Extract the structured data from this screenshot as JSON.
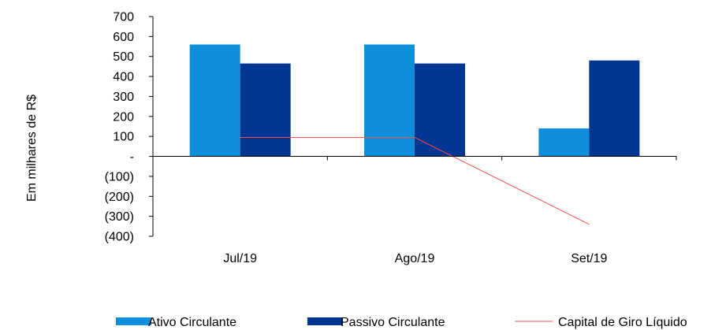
{
  "chart_data": {
    "type": "bar",
    "ylabel": "Em milhares de R$",
    "categories": [
      "Jul/19",
      "Ago/19",
      "Set/19"
    ],
    "ylim": [
      -400,
      700
    ],
    "yticks": [
      700,
      600,
      500,
      400,
      300,
      200,
      100,
      0,
      -100,
      -200,
      -300,
      -400
    ],
    "ytick_labels": [
      "700",
      "600",
      "500",
      "400",
      "300",
      "200",
      "100",
      "-",
      "(100)",
      "(200)",
      "(300)",
      "(400)"
    ],
    "grid": false,
    "legend_position": "bottom",
    "series": [
      {
        "name": "Ativo Circulante",
        "kind": "bar",
        "color": "#0f8fdb",
        "values": [
          560,
          560,
          140
        ]
      },
      {
        "name": "Passivo Circulante",
        "kind": "bar",
        "color": "#003591",
        "values": [
          465,
          465,
          480
        ]
      },
      {
        "name": "Capital de Giro Líquido",
        "kind": "line",
        "color": "#ff4d4d",
        "values": [
          95,
          95,
          -340
        ]
      }
    ]
  }
}
